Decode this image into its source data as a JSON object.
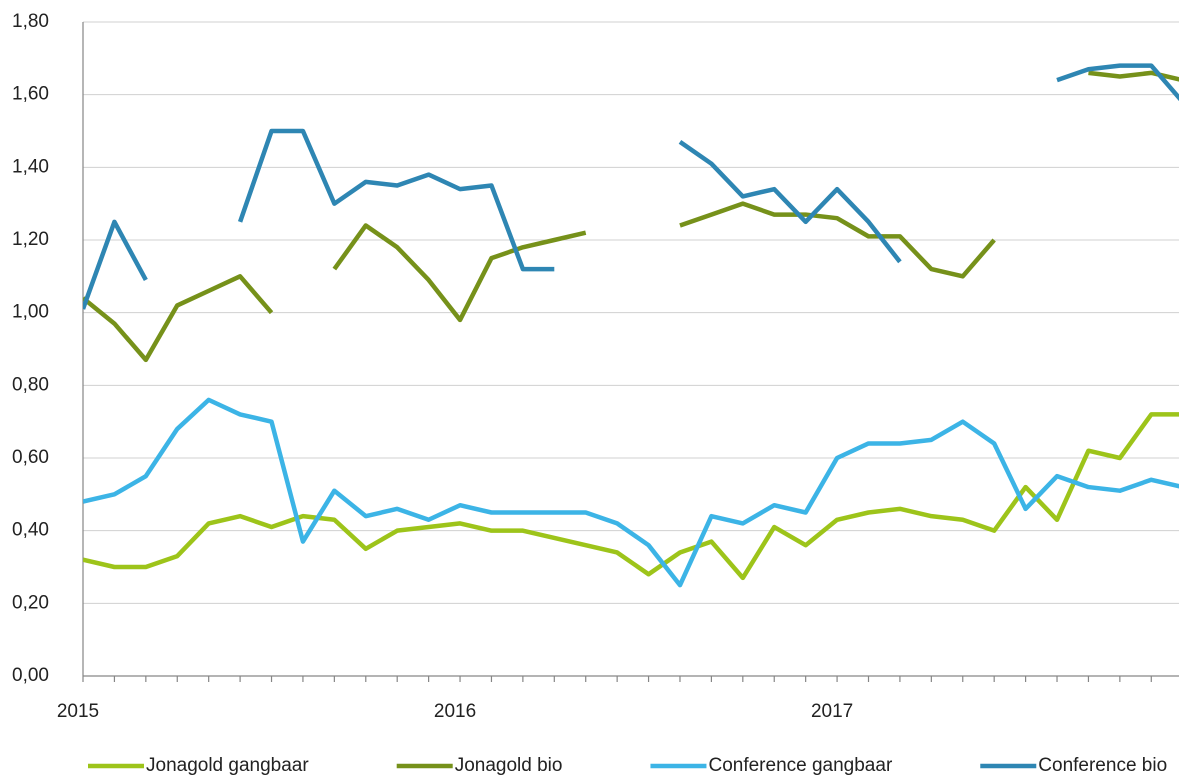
{
  "chart_data": {
    "type": "line",
    "categories": [
      "2015",
      null,
      null,
      null,
      null,
      null,
      null,
      null,
      null,
      null,
      null,
      null,
      "2016",
      null,
      null,
      null,
      null,
      null,
      null,
      null,
      null,
      null,
      null,
      null,
      "2017",
      null,
      null,
      null,
      null,
      null,
      null,
      null,
      null,
      null,
      null,
      null
    ],
    "series": [
      {
        "name": "Jonagold gangbaar",
        "color": "#9dc41a",
        "values": [
          0.32,
          0.3,
          0.3,
          0.33,
          0.42,
          0.44,
          0.41,
          0.44,
          0.43,
          0.35,
          0.4,
          0.41,
          0.42,
          0.4,
          0.4,
          0.38,
          0.36,
          0.34,
          0.28,
          0.34,
          0.37,
          0.27,
          0.41,
          0.36,
          0.43,
          0.45,
          0.46,
          0.44,
          0.43,
          0.4,
          0.52,
          0.43,
          0.62,
          0.6,
          0.72,
          0.72
        ]
      },
      {
        "name": "Jonagold bio",
        "color": "#76911a",
        "values": [
          1.04,
          0.97,
          0.87,
          1.02,
          1.06,
          1.1,
          1.0,
          null,
          1.12,
          1.24,
          1.18,
          1.09,
          0.98,
          1.15,
          1.18,
          1.2,
          1.22,
          null,
          null,
          1.24,
          1.27,
          1.3,
          1.27,
          1.27,
          1.26,
          1.21,
          1.21,
          1.12,
          1.1,
          1.2,
          null,
          null,
          1.66,
          1.65,
          1.66,
          1.64
        ]
      },
      {
        "name": "Conference gangbaar",
        "color": "#3cb4e6",
        "values": [
          0.48,
          0.5,
          0.55,
          0.68,
          0.76,
          0.72,
          0.7,
          0.37,
          0.51,
          0.44,
          0.46,
          0.43,
          0.47,
          0.45,
          0.45,
          0.45,
          0.45,
          0.42,
          0.36,
          0.25,
          0.44,
          0.42,
          0.47,
          0.45,
          0.6,
          0.64,
          0.64,
          0.65,
          0.7,
          0.64,
          0.46,
          0.55,
          0.52,
          0.51,
          0.54,
          0.52
        ]
      },
      {
        "name": "Conference bio",
        "color": "#2e86b3",
        "values": [
          1.01,
          1.25,
          1.09,
          null,
          null,
          1.25,
          1.5,
          1.5,
          1.3,
          1.36,
          1.35,
          1.38,
          1.34,
          1.35,
          1.12,
          1.12,
          null,
          null,
          null,
          1.47,
          1.41,
          1.32,
          1.34,
          1.25,
          1.34,
          1.25,
          1.14,
          null,
          null,
          null,
          null,
          1.64,
          1.67,
          1.68,
          1.68,
          1.58
        ]
      }
    ],
    "ylim": [
      0,
      1.8
    ],
    "yticks": [
      {
        "value": 0,
        "label": "0,00"
      },
      {
        "value": 0.2,
        "label": "0,20"
      },
      {
        "value": 0.4,
        "label": "0,40"
      },
      {
        "value": 0.6,
        "label": "0,60"
      },
      {
        "value": 0.8,
        "label": "0,80"
      },
      {
        "value": 1.0,
        "label": "1,00"
      },
      {
        "value": 1.2,
        "label": "1,20"
      },
      {
        "value": 1.4,
        "label": "1,40"
      },
      {
        "value": 1.6,
        "label": "1,60"
      },
      {
        "value": 1.8,
        "label": "1,80"
      }
    ],
    "grid": true,
    "legend": "bottom"
  }
}
